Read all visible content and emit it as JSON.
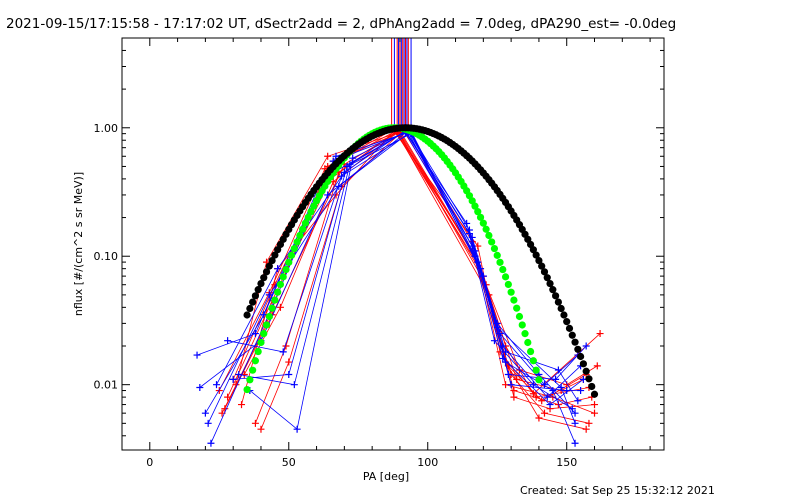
{
  "page": {
    "title": "2021-09-15/17:15:58 - 17:17:02 UT, dSectr2add = 2, dPhAng2add = 7.0deg, dPA290_est= -0.0deg",
    "footer": "Created: Sat Sep 25 15:32:12 2021"
  },
  "chart_data": {
    "type": "line",
    "title": "2021-09-15/17:15:58 - 17:17:02 UT, dSectr2add = 2, dPhAng2add = 7.0deg, dPA290_est= -0.0deg",
    "xlabel": "PA [deg]",
    "ylabel": "nflux [#/(cm^2 s sr MeV)]",
    "xlim": [
      -10,
      185
    ],
    "ylim": [
      0.0031,
      5.0
    ],
    "yscale": "log",
    "grid": false,
    "legend": "none",
    "x_ticks": [
      0,
      50,
      100,
      150
    ],
    "x_tick_labels": [
      "0",
      "50",
      "100",
      "150"
    ],
    "y_ticks": [
      0.01,
      0.1,
      1.0
    ],
    "y_tick_labels": [
      "0.01",
      "0.10",
      "1.00"
    ],
    "colors": {
      "red": "#ff0000",
      "blue": "#0000ff",
      "green": "#00ff00",
      "black": "#000000"
    },
    "series": [
      {
        "color": "red",
        "marker": "+",
        "lines": [
          {
            "x": [
              26,
              42,
              64,
              88,
              116,
              128,
              140,
              157
            ],
            "y": [
              0.006,
              0.03,
              0.5,
              0.98,
              0.11,
              0.015,
              0.0055,
              0.0045
            ]
          },
          {
            "x": [
              28,
              44,
              65,
              89,
              117,
              130,
              142,
              158
            ],
            "y": [
              0.008,
              0.045,
              0.4,
              0.95,
              0.1,
              0.012,
              0.006,
              0.005
            ]
          },
          {
            "x": [
              30,
              45,
              66,
              90,
              118,
              128,
              145,
              160
            ],
            "y": [
              0.011,
              0.06,
              0.55,
              0.92,
              0.09,
              0.01,
              0.008,
              0.006
            ]
          },
          {
            "x": [
              33,
              46,
              67,
              88,
              119,
              131,
              147,
              159
            ],
            "y": [
              0.007,
              0.08,
              0.3,
              0.96,
              0.08,
              0.009,
              0.007,
              0.008
            ]
          },
          {
            "x": [
              38,
              49,
              68,
              89,
              120,
              132,
              148,
              156
            ],
            "y": [
              0.005,
              0.02,
              0.45,
              0.94,
              0.07,
              0.011,
              0.009,
              0.011
            ]
          },
          {
            "x": [
              40,
              50,
              69,
              90,
              121,
              133,
              150,
              161
            ],
            "y": [
              0.0045,
              0.015,
              0.35,
              0.9,
              0.06,
              0.013,
              0.01,
              0.014
            ]
          },
          {
            "x": [
              25,
              43,
              63,
              88,
              118,
              126,
              139,
              158
            ],
            "y": [
              0.009,
              0.052,
              0.48,
              0.93,
              0.12,
              0.018,
              0.008,
              0.0095
            ]
          },
          {
            "x": [
              27,
              44,
              70,
              91,
              116,
              128,
              138,
              162
            ],
            "y": [
              0.0065,
              0.035,
              0.52,
              0.97,
              0.13,
              0.02,
              0.0085,
              0.025
            ]
          },
          {
            "x": [
              31,
              42,
              64,
              89,
              122,
              131,
              144,
              160
            ],
            "y": [
              0.01,
              0.09,
              0.6,
              0.91,
              0.05,
              0.008,
              0.0065,
              0.007
            ]
          },
          {
            "x": [
              34,
              47,
              66,
              90,
              117,
              129,
              141,
              157
            ],
            "y": [
              0.012,
              0.04,
              0.38,
              0.95,
              0.1,
              0.014,
              0.0075,
              0.012
            ]
          }
        ]
      },
      {
        "color": "blue",
        "marker": "+",
        "lines": [
          {
            "x": [
              17,
              38,
              62,
              92,
              115,
              125,
              140,
              153
            ],
            "y": [
              0.017,
              0.025,
              0.4,
              0.93,
              0.15,
              0.03,
              0.012,
              0.006
            ]
          },
          {
            "x": [
              18,
              40,
              64,
              93,
              116,
              126,
              142,
              154
            ],
            "y": [
              0.0095,
              0.022,
              0.3,
              0.95,
              0.12,
              0.025,
              0.01,
              0.017
            ]
          },
          {
            "x": [
              20,
              41,
              66,
              92,
              117,
              127,
              143,
              155
            ],
            "y": [
              0.006,
              0.035,
              0.55,
              0.91,
              0.11,
              0.02,
              0.008,
              0.014
            ]
          },
          {
            "x": [
              21,
              43,
              68,
              94,
              118,
              128,
              145,
              153
            ],
            "y": [
              0.005,
              0.05,
              0.35,
              0.94,
              0.09,
              0.015,
              0.009,
              0.0035
            ]
          },
          {
            "x": [
              22,
              44,
              67,
              93,
              119,
              129,
              146,
              157
            ],
            "y": [
              0.0035,
              0.04,
              0.6,
              0.92,
              0.08,
              0.012,
              0.011,
              0.02
            ]
          },
          {
            "x": [
              24,
              46,
              70,
              92,
              116,
              128,
              147,
              154
            ],
            "y": [
              0.01,
              0.08,
              0.45,
              0.95,
              0.14,
              0.018,
              0.013,
              0.0075
            ]
          },
          {
            "x": [
              30,
              50,
              71,
              94,
              120,
              130,
              150,
              155
            ],
            "y": [
              0.011,
              0.012,
              0.5,
              0.9,
              0.07,
              0.01,
              0.009,
              0.009
            ]
          },
          {
            "x": [
              32,
              52,
              72,
              93,
              115,
              125,
              148,
              153
            ],
            "y": [
              0.012,
              0.01,
              0.52,
              0.96,
              0.16,
              0.028,
              0.0095,
              0.005
            ]
          },
          {
            "x": [
              36,
              53,
              73,
              92,
              114,
              124,
              138,
              152
            ],
            "y": [
              0.009,
              0.0045,
              0.58,
              0.93,
              0.18,
              0.022,
              0.01,
              0.0065
            ]
          },
          {
            "x": [
              28,
              48,
              69,
              94,
              117,
              127,
              144,
              156
            ],
            "y": [
              0.022,
              0.018,
              0.42,
              0.92,
              0.1,
              0.016,
              0.007,
              0.011
            ]
          }
        ]
      },
      {
        "color": "green",
        "marker": "dot",
        "name": "",
        "curve": "gaussian",
        "center": 88,
        "sigma": 17.3,
        "x_range": [
          35,
          140
        ],
        "peak": 1.0
      },
      {
        "color": "black",
        "marker": "dot",
        "name": "",
        "curve": "gaussian",
        "center": 92,
        "sigma": 22.0,
        "x_range": [
          35,
          160
        ],
        "peak": 1.0
      }
    ],
    "vertical_lines": {
      "x": [
        87,
        88,
        89,
        89.5,
        90,
        90.5,
        91,
        91.5,
        92,
        92.5,
        93,
        94
      ],
      "y_from": 1.0,
      "colors": [
        "red",
        "blue",
        "red",
        "blue",
        "red",
        "blue",
        "red",
        "blue",
        "red",
        "blue",
        "red",
        "blue"
      ]
    }
  }
}
